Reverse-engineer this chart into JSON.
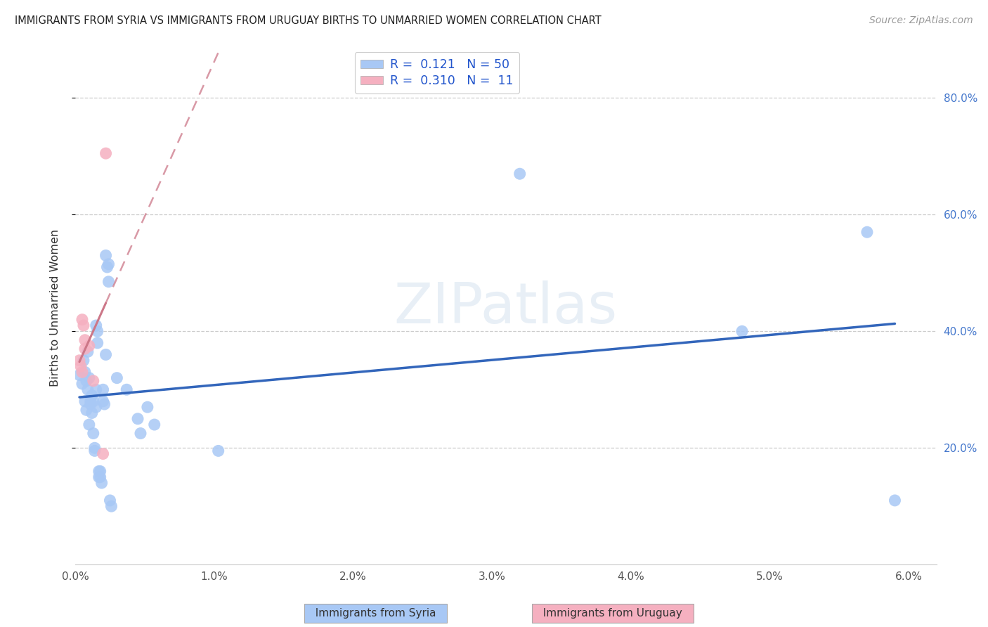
{
  "title": "IMMIGRANTS FROM SYRIA VS IMMIGRANTS FROM URUGUAY BIRTHS TO UNMARRIED WOMEN CORRELATION CHART",
  "source": "Source: ZipAtlas.com",
  "ylabel": "Births to Unmarried Women",
  "xlim": [
    0.0,
    6.2
  ],
  "ylim": [
    0.0,
    88.0
  ],
  "yticks": [
    20.0,
    40.0,
    60.0,
    80.0
  ],
  "ytick_labels": [
    "20.0%",
    "40.0%",
    "60.0%",
    "80.0%"
  ],
  "xtick_vals": [
    0.0,
    1.0,
    2.0,
    3.0,
    4.0,
    5.0,
    6.0
  ],
  "xtick_labels": [
    "0.0%",
    "1.0%",
    "2.0%",
    "3.0%",
    "4.0%",
    "5.0%",
    "6.0%"
  ],
  "legend_R_syria": "0.121",
  "legend_N_syria": "50",
  "legend_R_uruguay": "0.310",
  "legend_N_uruguay": "11",
  "watermark": "ZIPatlas",
  "syria_color": "#a8c8f5",
  "uruguay_color": "#f5b0c0",
  "syria_line_color": "#3366bb",
  "uruguay_line_color": "#cc7788",
  "grid_color": "#cccccc",
  "syria_points": [
    [
      0.03,
      32.5
    ],
    [
      0.05,
      31.0
    ],
    [
      0.06,
      35.0
    ],
    [
      0.07,
      33.0
    ],
    [
      0.07,
      28.0
    ],
    [
      0.08,
      26.5
    ],
    [
      0.08,
      31.5
    ],
    [
      0.09,
      30.0
    ],
    [
      0.09,
      36.5
    ],
    [
      0.1,
      32.0
    ],
    [
      0.1,
      24.0
    ],
    [
      0.11,
      27.5
    ],
    [
      0.11,
      28.0
    ],
    [
      0.12,
      26.0
    ],
    [
      0.12,
      29.0
    ],
    [
      0.13,
      22.5
    ],
    [
      0.13,
      28.0
    ],
    [
      0.14,
      19.5
    ],
    [
      0.14,
      20.0
    ],
    [
      0.15,
      27.0
    ],
    [
      0.15,
      30.0
    ],
    [
      0.15,
      41.0
    ],
    [
      0.16,
      38.0
    ],
    [
      0.16,
      40.0
    ],
    [
      0.17,
      15.0
    ],
    [
      0.17,
      16.0
    ],
    [
      0.18,
      15.0
    ],
    [
      0.18,
      16.0
    ],
    [
      0.19,
      14.0
    ],
    [
      0.2,
      28.0
    ],
    [
      0.2,
      30.0
    ],
    [
      0.21,
      27.5
    ],
    [
      0.22,
      36.0
    ],
    [
      0.22,
      53.0
    ],
    [
      0.23,
      51.0
    ],
    [
      0.24,
      51.5
    ],
    [
      0.24,
      48.5
    ],
    [
      0.25,
      11.0
    ],
    [
      0.26,
      10.0
    ],
    [
      0.3,
      32.0
    ],
    [
      0.37,
      30.0
    ],
    [
      0.45,
      25.0
    ],
    [
      0.47,
      22.5
    ],
    [
      0.52,
      27.0
    ],
    [
      0.57,
      24.0
    ],
    [
      1.03,
      19.5
    ],
    [
      3.2,
      67.0
    ],
    [
      4.8,
      40.0
    ],
    [
      5.7,
      57.0
    ],
    [
      5.9,
      11.0
    ]
  ],
  "uruguay_points": [
    [
      0.03,
      35.0
    ],
    [
      0.04,
      34.0
    ],
    [
      0.05,
      33.0
    ],
    [
      0.05,
      42.0
    ],
    [
      0.06,
      41.0
    ],
    [
      0.07,
      38.5
    ],
    [
      0.07,
      37.0
    ],
    [
      0.1,
      37.5
    ],
    [
      0.13,
      31.5
    ],
    [
      0.2,
      19.0
    ],
    [
      0.22,
      70.5
    ]
  ]
}
